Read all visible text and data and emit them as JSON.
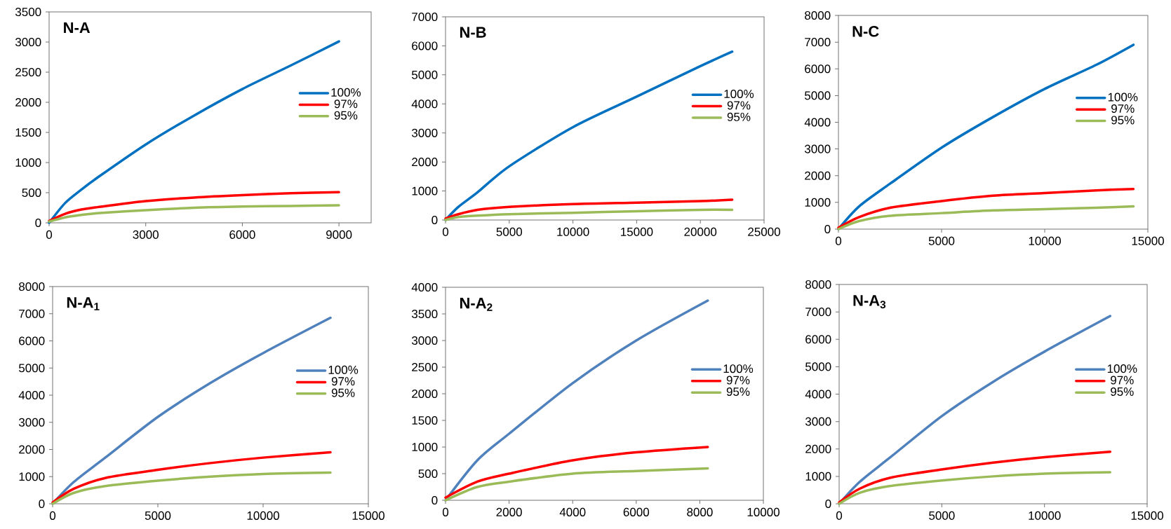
{
  "chart_data": [
    {
      "type": "line",
      "title": "N-A",
      "legend": "right",
      "xlim": [
        0,
        10000
      ],
      "xticks": [
        0,
        3000,
        6000,
        9000
      ],
      "ylim": [
        0,
        3500
      ],
      "yticks": [
        0,
        500,
        1000,
        1500,
        2000,
        2500,
        3000,
        3500
      ],
      "x": [
        0,
        500,
        1000,
        1500,
        3000,
        4500,
        6000,
        7500,
        9000
      ],
      "series": [
        {
          "name": "100%",
          "color": "#0070c0",
          "values": [
            0,
            330,
            550,
            750,
            1300,
            1780,
            2220,
            2610,
            3010
          ]
        },
        {
          "name": "97%",
          "color": "#ff0000",
          "values": [
            30,
            150,
            220,
            260,
            360,
            420,
            460,
            490,
            510
          ]
        },
        {
          "name": "95%",
          "color": "#9bbb59",
          "values": [
            20,
            90,
            130,
            160,
            210,
            250,
            270,
            280,
            290
          ]
        }
      ]
    },
    {
      "type": "line",
      "title": "N-B",
      "legend": "right",
      "xlim": [
        0,
        25000
      ],
      "xticks": [
        0,
        5000,
        10000,
        15000,
        20000,
        25000
      ],
      "ylim": [
        0,
        7000
      ],
      "yticks": [
        0,
        1000,
        2000,
        3000,
        4000,
        5000,
        6000,
        7000
      ],
      "x": [
        0,
        1000,
        2500,
        5000,
        10000,
        15000,
        20000,
        22500
      ],
      "series": [
        {
          "name": "100%",
          "color": "#0070c0",
          "values": [
            0,
            450,
            950,
            1850,
            3200,
            4250,
            5300,
            5800
          ]
        },
        {
          "name": "97%",
          "color": "#ff0000",
          "values": [
            50,
            200,
            350,
            450,
            550,
            600,
            650,
            700
          ]
        },
        {
          "name": "95%",
          "color": "#9bbb59",
          "values": [
            0,
            100,
            150,
            200,
            250,
            300,
            350,
            350
          ]
        }
      ]
    },
    {
      "type": "line",
      "title": "N-C",
      "legend": "right",
      "xlim": [
        0,
        15000
      ],
      "xticks": [
        0,
        5000,
        10000,
        15000
      ],
      "ylim": [
        0,
        8000
      ],
      "yticks": [
        0,
        1000,
        2000,
        3000,
        4000,
        5000,
        6000,
        7000,
        8000
      ],
      "x": [
        0,
        1000,
        2500,
        5000,
        7500,
        10000,
        12500,
        14300
      ],
      "series": [
        {
          "name": "100%",
          "color": "#0070c0",
          "values": [
            0,
            850,
            1700,
            3050,
            4200,
            5250,
            6150,
            6900
          ]
        },
        {
          "name": "97%",
          "color": "#ff0000",
          "values": [
            50,
            450,
            800,
            1050,
            1250,
            1350,
            1450,
            1500
          ]
        },
        {
          "name": "95%",
          "color": "#9bbb59",
          "values": [
            0,
            300,
            500,
            600,
            700,
            750,
            800,
            850
          ]
        }
      ]
    },
    {
      "type": "line",
      "title": "N-A$_{1}$",
      "legend": "right",
      "xlim": [
        0,
        15000
      ],
      "xticks": [
        0,
        5000,
        10000,
        15000
      ],
      "ylim": [
        0,
        8000
      ],
      "yticks": [
        0,
        1000,
        2000,
        3000,
        4000,
        5000,
        6000,
        7000,
        8000
      ],
      "x": [
        0,
        1000,
        2500,
        5000,
        7500,
        10000,
        13200
      ],
      "series": [
        {
          "name": "100%",
          "color": "#4f81bd",
          "values": [
            0,
            800,
            1700,
            3200,
            4450,
            5550,
            6850
          ]
        },
        {
          "name": "97%",
          "color": "#ff0000",
          "values": [
            50,
            550,
            950,
            1250,
            1500,
            1700,
            1900
          ]
        },
        {
          "name": "95%",
          "color": "#9bbb59",
          "values": [
            0,
            400,
            650,
            850,
            1000,
            1100,
            1150
          ]
        }
      ]
    },
    {
      "type": "line",
      "title": "N-A$_{2}$",
      "legend": "right",
      "xlim": [
        0,
        10000
      ],
      "xticks": [
        0,
        2000,
        4000,
        6000,
        8000,
        10000
      ],
      "ylim": [
        0,
        4000
      ],
      "yticks": [
        0,
        500,
        1000,
        1500,
        2000,
        2500,
        3000,
        3500,
        4000
      ],
      "x": [
        0,
        1000,
        2000,
        4000,
        6000,
        8250
      ],
      "series": [
        {
          "name": "100%",
          "color": "#4f81bd",
          "values": [
            0,
            750,
            1250,
            2200,
            3000,
            3750
          ]
        },
        {
          "name": "97%",
          "color": "#ff0000",
          "values": [
            50,
            350,
            500,
            750,
            900,
            1000
          ]
        },
        {
          "name": "95%",
          "color": "#9bbb59",
          "values": [
            0,
            250,
            350,
            500,
            550,
            600
          ]
        }
      ]
    },
    {
      "type": "line",
      "title": "N-A$_{3}$",
      "legend": "right",
      "xlim": [
        0,
        15000
      ],
      "xticks": [
        0,
        5000,
        10000,
        15000
      ],
      "ylim": [
        0,
        8000
      ],
      "yticks": [
        0,
        1000,
        2000,
        3000,
        4000,
        5000,
        6000,
        7000,
        8000
      ],
      "x": [
        0,
        1000,
        2500,
        5000,
        7500,
        10000,
        13200
      ],
      "series": [
        {
          "name": "100%",
          "color": "#4f81bd",
          "values": [
            0,
            800,
            1700,
            3200,
            4450,
            5550,
            6850
          ]
        },
        {
          "name": "97%",
          "color": "#ff0000",
          "values": [
            50,
            550,
            950,
            1250,
            1500,
            1700,
            1900
          ]
        },
        {
          "name": "95%",
          "color": "#9bbb59",
          "values": [
            0,
            400,
            650,
            850,
            1000,
            1100,
            1150
          ]
        }
      ]
    }
  ]
}
